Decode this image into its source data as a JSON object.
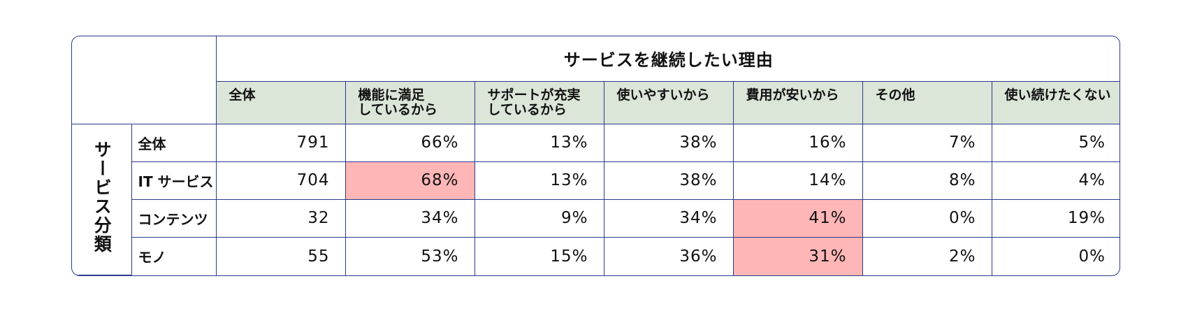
{
  "title": "サービスを継続したい理由",
  "group_label": "サービス分類",
  "columns": [
    {
      "line1": "全体",
      "line2": ""
    },
    {
      "line1": "機能に満足",
      "line2": "しているから"
    },
    {
      "line1": "サポートが充実",
      "line2": "しているから"
    },
    {
      "line1": "使いやすいから",
      "line2": ""
    },
    {
      "line1": "費用が安いから",
      "line2": ""
    },
    {
      "line1": "その他",
      "line2": ""
    },
    {
      "line1": "使い続けたくない",
      "line2": ""
    }
  ],
  "rows": [
    {
      "label": "全体",
      "values": [
        "791",
        "66%",
        "13%",
        "38%",
        "16%",
        "7%",
        "5%"
      ]
    },
    {
      "label": "IT サービス",
      "values": [
        "704",
        "68%",
        "13%",
        "38%",
        "14%",
        "8%",
        "4%"
      ]
    },
    {
      "label": "コンテンツ",
      "values": [
        "32",
        "34%",
        "9%",
        "34%",
        "41%",
        "0%",
        "19%"
      ]
    },
    {
      "label": "モノ",
      "values": [
        "55",
        "53%",
        "15%",
        "36%",
        "31%",
        "2%",
        "0%"
      ]
    }
  ],
  "highlighted_cells": [
    {
      "row": 1,
      "col": 1
    },
    {
      "row": 2,
      "col": 4
    },
    {
      "row": 3,
      "col": 4
    }
  ],
  "colors": {
    "border": "#2b3a8c",
    "header_bg": "#dbe5d8",
    "highlight_bg": "#ffb6b6"
  }
}
